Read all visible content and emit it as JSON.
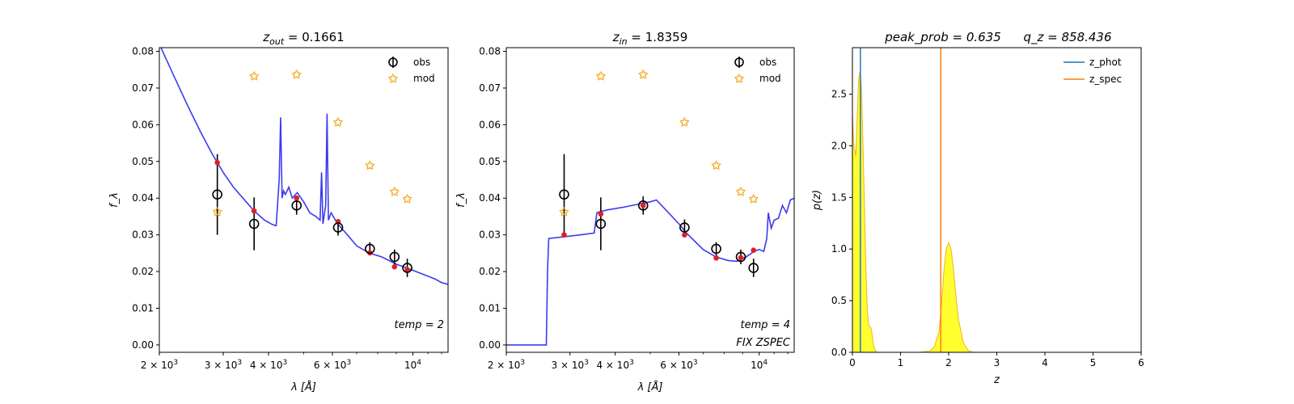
{
  "chart_data": [
    {
      "type": "scatter",
      "title": "z_out = 0.1661",
      "title_parts": {
        "main": "z",
        "sub": "out",
        "rest": " = 0.1661"
      },
      "xlabel": "λ [Å]",
      "ylabel": "f_λ",
      "xscale": "log",
      "xlim": [
        2000,
        12500
      ],
      "ylim": [
        -0.002,
        0.081
      ],
      "xticks": [
        {
          "value": 2000,
          "mant": "2 × 10",
          "exp": "3"
        },
        {
          "value": 3000,
          "mant": "3 × 10",
          "exp": "3"
        },
        {
          "value": 4000,
          "mant": "4 × 10",
          "exp": "3"
        },
        {
          "value": 6000,
          "mant": "6 × 10",
          "exp": "3"
        },
        {
          "value": 10000,
          "mant": "10",
          "exp": "4"
        }
      ],
      "yticks": [
        0.0,
        0.01,
        0.02,
        0.03,
        0.04,
        0.05,
        0.06,
        0.07,
        0.08
      ],
      "ytick_labels": [
        "0.00",
        "0.01",
        "0.02",
        "0.03",
        "0.04",
        "0.05",
        "0.06",
        "0.07",
        "0.08"
      ],
      "grid": false,
      "legend": {
        "position": "top-right",
        "entries": [
          "obs",
          "mod"
        ]
      },
      "annotations": [
        "temp = 2"
      ],
      "obs": {
        "x": [
          2890,
          3650,
          4780,
          6220,
          7610,
          8900,
          9650
        ],
        "y": [
          0.041,
          0.033,
          0.038,
          0.032,
          0.0262,
          0.024,
          0.021
        ],
        "yerr": [
          0.011,
          0.0072,
          0.0025,
          0.0022,
          0.0018,
          0.002,
          0.0025
        ]
      },
      "mod": {
        "x": [
          2890,
          3650,
          4780,
          6220,
          7610,
          8900,
          9650
        ],
        "y": [
          0.0363,
          0.0733,
          0.0737,
          0.0607,
          0.049,
          0.0418,
          0.0398
        ]
      },
      "model_at_filters": {
        "x": [
          2890,
          3650,
          4780,
          6220,
          7610,
          8900,
          9650
        ],
        "y": [
          0.0497,
          0.0365,
          0.04,
          0.0336,
          0.0251,
          0.0213,
          0.0205
        ]
      },
      "sed": {
        "x": [
          2000,
          2200,
          2400,
          2600,
          2800,
          3000,
          3200,
          3400,
          3650,
          3900,
          4100,
          4200,
          4280,
          4320,
          4360,
          4400,
          4450,
          4550,
          4650,
          4800,
          5000,
          5200,
          5400,
          5550,
          5600,
          5650,
          5750,
          5800,
          5850,
          5950,
          6200,
          6600,
          7000,
          7600,
          8200,
          9000,
          9600,
          10500,
          11500,
          12000,
          12500
        ],
        "y": [
          0.082,
          0.073,
          0.065,
          0.058,
          0.052,
          0.047,
          0.043,
          0.04,
          0.0365,
          0.034,
          0.0328,
          0.0325,
          0.045,
          0.062,
          0.04,
          0.042,
          0.041,
          0.043,
          0.04,
          0.0415,
          0.039,
          0.036,
          0.035,
          0.034,
          0.047,
          0.033,
          0.038,
          0.063,
          0.034,
          0.036,
          0.033,
          0.03,
          0.027,
          0.025,
          0.024,
          0.022,
          0.021,
          0.0195,
          0.018,
          0.017,
          0.0165
        ]
      }
    },
    {
      "type": "scatter",
      "title": "z_in = 1.8359",
      "title_parts": {
        "main": "z",
        "sub": "in",
        "rest": " = 1.8359"
      },
      "xlabel": "λ [Å]",
      "ylabel": "f_λ",
      "xscale": "log",
      "xlim": [
        2000,
        12500
      ],
      "ylim": [
        -0.002,
        0.081
      ],
      "xticks": [
        {
          "value": 2000,
          "mant": "2 × 10",
          "exp": "3"
        },
        {
          "value": 3000,
          "mant": "3 × 10",
          "exp": "3"
        },
        {
          "value": 4000,
          "mant": "4 × 10",
          "exp": "3"
        },
        {
          "value": 6000,
          "mant": "6 × 10",
          "exp": "3"
        },
        {
          "value": 10000,
          "mant": "10",
          "exp": "4"
        }
      ],
      "yticks": [
        0.0,
        0.01,
        0.02,
        0.03,
        0.04,
        0.05,
        0.06,
        0.07,
        0.08
      ],
      "ytick_labels": [
        "0.00",
        "0.01",
        "0.02",
        "0.03",
        "0.04",
        "0.05",
        "0.06",
        "0.07",
        "0.08"
      ],
      "grid": false,
      "legend": {
        "position": "top-right",
        "entries": [
          "obs",
          "mod"
        ]
      },
      "annotations": [
        "temp = 4",
        "FIX ZSPEC"
      ],
      "obs": {
        "x": [
          2890,
          3650,
          4780,
          6220,
          7610,
          8900,
          9650
        ],
        "y": [
          0.041,
          0.033,
          0.038,
          0.032,
          0.0262,
          0.024,
          0.021
        ],
        "yerr": [
          0.011,
          0.0072,
          0.0025,
          0.0022,
          0.0018,
          0.002,
          0.0025
        ]
      },
      "mod": {
        "x": [
          2890,
          3650,
          4780,
          6220,
          7610,
          8900,
          9650
        ],
        "y": [
          0.0363,
          0.0733,
          0.0737,
          0.0607,
          0.049,
          0.0418,
          0.0398
        ]
      },
      "model_at_filters": {
        "x": [
          2890,
          3650,
          4780,
          6220,
          7610,
          8900,
          9650
        ],
        "y": [
          0.03,
          0.0357,
          0.038,
          0.03,
          0.0237,
          0.0238,
          0.0258
        ]
      },
      "sed": {
        "x": [
          2000,
          2580,
          2600,
          2620,
          2900,
          3200,
          3500,
          3560,
          3600,
          3800,
          4200,
          4600,
          5000,
          5200,
          5500,
          6000,
          6300,
          7000,
          7600,
          8200,
          8700,
          9200,
          9700,
          10000,
          10300,
          10500,
          10600,
          10800,
          11000,
          11300,
          11600,
          11900,
          12200,
          12500
        ],
        "y": [
          0.0,
          0.0,
          0.02,
          0.029,
          0.0295,
          0.03,
          0.0305,
          0.036,
          0.0362,
          0.0368,
          0.0375,
          0.0383,
          0.039,
          0.0395,
          0.037,
          0.033,
          0.0305,
          0.026,
          0.024,
          0.023,
          0.0228,
          0.024,
          0.0255,
          0.026,
          0.0255,
          0.029,
          0.036,
          0.0318,
          0.034,
          0.0345,
          0.038,
          0.036,
          0.0395,
          0.04
        ]
      }
    },
    {
      "type": "area",
      "title": "peak_prob = 0.635      q_z = 858.436",
      "title_parts": {
        "left": "peak_prob = 0.635",
        "right": "q_z = 858.436"
      },
      "xlabel": "z",
      "ylabel": "p(z)",
      "xlim": [
        0,
        6
      ],
      "ylim": [
        0,
        2.95
      ],
      "xticks": [
        0,
        1,
        2,
        3,
        4,
        5,
        6
      ],
      "xtick_labels": [
        "0",
        "1",
        "2",
        "3",
        "4",
        "5",
        "6"
      ],
      "yticks": [
        0.0,
        0.5,
        1.0,
        1.5,
        2.0,
        2.5
      ],
      "ytick_labels": [
        "0.0",
        "0.5",
        "1.0",
        "1.5",
        "2.0",
        "2.5"
      ],
      "grid": false,
      "legend": {
        "position": "top-right",
        "entries": [
          "z_phot",
          "z_spec"
        ]
      },
      "z_phot": 0.166,
      "z_spec": 1.836,
      "pz": {
        "x": [
          0.0,
          0.03,
          0.07,
          0.1,
          0.13,
          0.16,
          0.19,
          0.22,
          0.25,
          0.28,
          0.31,
          0.34,
          0.36,
          0.38,
          0.4,
          0.42,
          0.45,
          0.5,
          0.6,
          0.8,
          1.0,
          1.2,
          1.4,
          1.6,
          1.7,
          1.8,
          1.85,
          1.9,
          1.95,
          2.0,
          2.05,
          2.1,
          2.15,
          2.2,
          2.3,
          2.4,
          2.5,
          3.0,
          4.0,
          5.0
        ],
        "y": [
          2.3,
          2.0,
          1.9,
          2.3,
          2.65,
          2.72,
          2.55,
          2.0,
          1.4,
          0.8,
          0.4,
          0.26,
          0.25,
          0.24,
          0.2,
          0.12,
          0.04,
          0.0,
          0.0,
          0.0,
          0.0,
          0.0,
          0.0,
          0.01,
          0.05,
          0.2,
          0.45,
          0.78,
          1.0,
          1.06,
          1.0,
          0.8,
          0.55,
          0.33,
          0.1,
          0.02,
          0.0,
          0.0,
          0.0,
          0.0
        ]
      }
    }
  ],
  "colors": {
    "sed_line": "#3b3bf0",
    "obs_marker": "#000000",
    "mod_marker": "#f2a81d",
    "model_point": "#e02020",
    "z_phot": "#1f77b4",
    "z_spec": "#ff7f0e",
    "pz_fill": "#ffff30",
    "pz_edge": "#f2b21d"
  }
}
